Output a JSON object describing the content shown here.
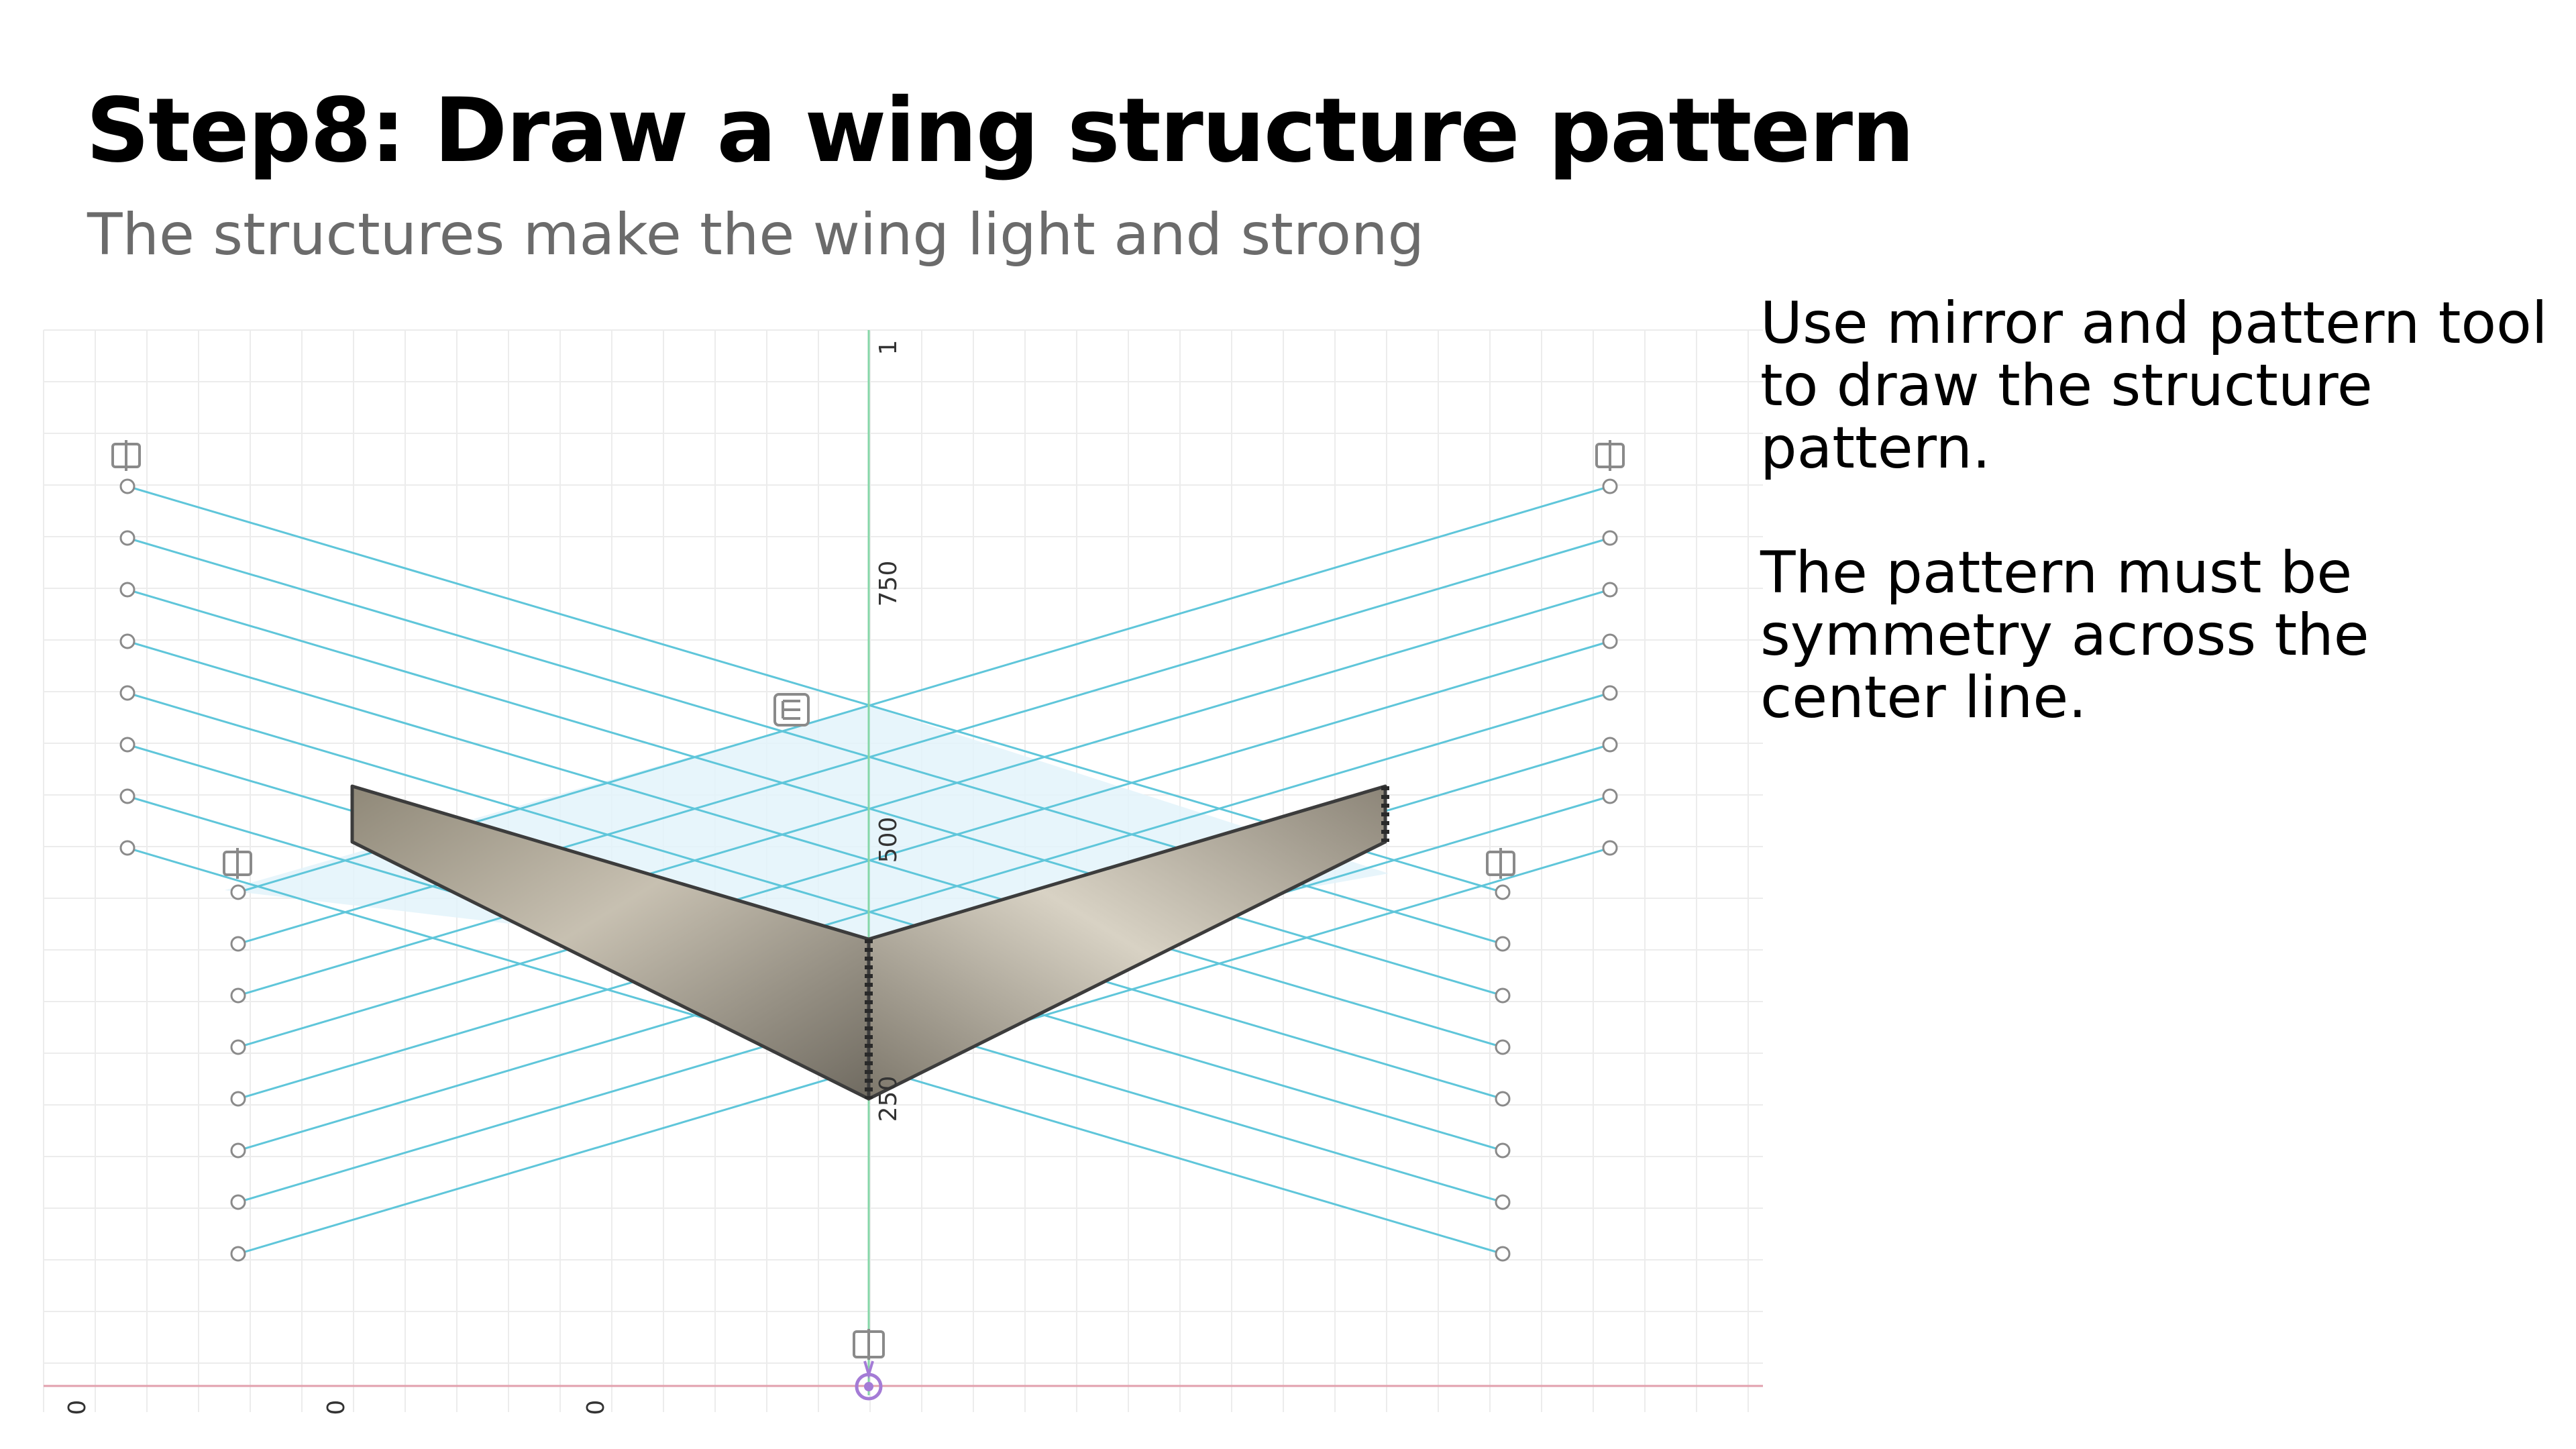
{
  "slide": {
    "title": "Step8: Draw a wing structure pattern",
    "subtitle": "The structures make the wing light and strong"
  },
  "instructions": {
    "paragraph_1": "Use mirror and pattern tool to draw the structure pattern.",
    "paragraph_2": "The pattern must be symmetry across the center line."
  },
  "sketch": {
    "vertical_axis_labels": [
      "1",
      "750",
      "500",
      "250"
    ],
    "horizontal_axis_labels": [
      "0",
      "0",
      "0"
    ],
    "colors": {
      "construction_line": "#5fc6da",
      "center_line": "#86d7a8",
      "origin_line": "#e2a0ad",
      "wing_fill": "#a39b8b",
      "wing_edge": "#3c3c3c",
      "pattern_region": "#e3f3fa",
      "grid": "#ececec",
      "point": "#8a8a8a",
      "origin_marker": "#a47bd6"
    },
    "icons": [
      "mirror-constraint-icon",
      "pattern-constraint-icon",
      "origin-icon"
    ]
  }
}
